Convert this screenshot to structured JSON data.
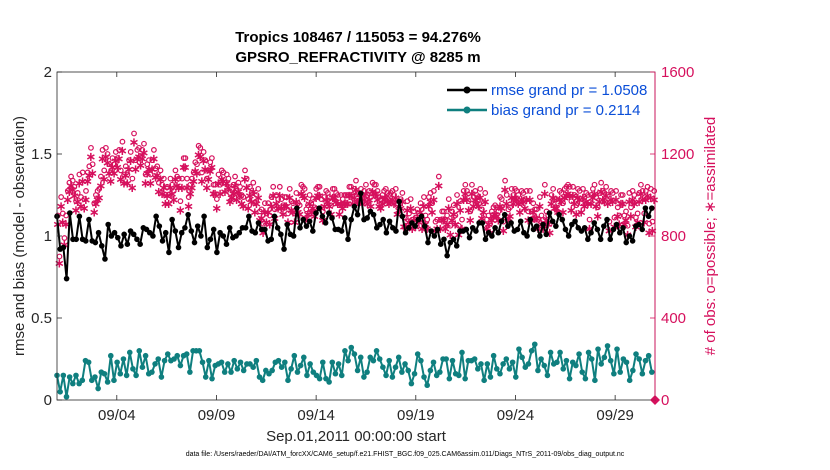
{
  "chart_data": {
    "type": "line",
    "title": "Tropics 108467 / 115053 = 94.276%",
    "subtitle": "GPSRO_REFRACTIVITY @ 8285 m",
    "xlabel": "Sep.01,2011 00:00:00 start",
    "ylabel": "rmse and bias (model - observation)",
    "y2label": "# of obs: o=possible; ∗=assimilated",
    "footer": "data file: /Users/raeder/DAI/ATM_forcXX/CAM6_setup/f.e21.FHIST_BGC.f09_025.CAM6assim.011/Diags_NTrS_2011-09/obs_diag_output.nc",
    "xlim": [
      1,
      31
    ],
    "ylim": [
      0,
      2
    ],
    "y2lim": [
      0,
      1600
    ],
    "x_tick_values": [
      4,
      9,
      14,
      19,
      24,
      29
    ],
    "x_tick_labels": [
      "09/04",
      "09/09",
      "09/14",
      "09/19",
      "09/24",
      "09/29"
    ],
    "y_tick_labels": [
      "0",
      "0.5",
      "1",
      "1.5",
      "2"
    ],
    "y2_tick_labels": [
      "0",
      "400",
      "800",
      "1200",
      "1600"
    ],
    "legend_position": "top-right",
    "colors": {
      "rmse": "#000000",
      "bias": "#0f7f7f",
      "obs": "#d6105d",
      "legend_text": "#0a4ed8"
    },
    "series": [
      {
        "name": "rmse grand pr = 1.0508",
        "values": [
          1.12,
          0.92,
          0.93,
          0.74,
          1.14,
          0.98,
          0.98,
          1.12,
          0.98,
          0.97,
          1.1,
          0.97,
          0.96,
          1.02,
          0.94,
          0.86,
          1.07,
          1.0,
          1.02,
          0.99,
          0.94,
          1.01,
          0.95,
          1.03,
          1.01,
          0.98,
          0.95,
          1.05,
          1.04,
          1.02,
          1.0,
          1.12,
          1.06,
          0.97,
          1.02,
          0.9,
          1.1,
          1.03,
          0.93,
          1.02,
          1.05,
          1.13,
          1.03,
          0.96,
          1.06,
          1.0,
          1.12,
          0.93,
          0.98,
          1.04,
          0.9,
          1.02,
          1.0,
          0.95,
          1.05,
          0.99,
          1.0,
          1.02,
          1.05,
          1.05,
          1.12,
          1.03,
          1.02,
          1.08,
          1.04,
          1.04,
          0.97,
          0.98,
          1.12,
          1.05,
          1.01,
          0.92,
          1.07,
          1.01,
          1.0,
          1.17,
          1.05,
          1.1,
          1.06,
          1.09,
          1.03,
          1.14,
          1.17,
          1.12,
          1.08,
          1.14,
          1.11,
          1.04,
          1.04,
          1.03,
          1.11,
          0.98,
          1.1,
          1.18,
          1.13,
          1.26,
          1.1,
          1.11,
          1.15,
          1.13,
          1.05,
          1.07,
          1.1,
          1.02,
          1.09,
          1.05,
          1.03,
          1.21,
          1.12,
          1.02,
          1.05,
          1.08,
          1.06,
          1.1,
          1.12,
          1.06,
          0.96,
          1.03,
          1.0,
          1.04,
          0.95,
          0.98,
          0.88,
          0.96,
          0.98,
          0.94,
          1.03,
          1.03,
          1.04,
          0.99,
          1.05,
          1.03,
          1.08,
          1.08,
          0.98,
          1.02,
          1.0,
          1.05,
          1.02,
          1.09,
          1.13,
          1.06,
          1.08,
          1.03,
          1.04,
          1.09,
          1.02,
          1.0,
          1.1,
          1.04,
          1.06,
          1.0,
          1.07,
          1.01,
          1.14,
          1.09,
          1.06,
          1.13,
          1.1,
          1.04,
          1.0,
          1.07,
          1.09,
          1.05,
          1.03,
          1.05,
          0.98,
          1.02,
          1.08,
          1.04,
          0.98,
          1.06,
          1.1,
          0.98,
          1.04,
          1.07,
          1.02,
          1.05,
          0.96,
          1.0,
          0.97,
          1.06,
          1.07,
          1.04,
          1.17,
          1.12,
          1.17
        ]
      },
      {
        "name": "bias grand pr = 0.2114",
        "values": [
          0.15,
          0.05,
          0.15,
          0.02,
          0.14,
          0.1,
          0.15,
          0.1,
          0.12,
          0.24,
          0.23,
          0.12,
          0.14,
          0.07,
          0.17,
          0.16,
          0.11,
          0.27,
          0.12,
          0.23,
          0.16,
          0.25,
          0.15,
          0.29,
          0.19,
          0.15,
          0.3,
          0.2,
          0.27,
          0.16,
          0.17,
          0.22,
          0.25,
          0.14,
          0.24,
          0.28,
          0.24,
          0.25,
          0.27,
          0.21,
          0.27,
          0.28,
          0.17,
          0.3,
          0.3,
          0.3,
          0.23,
          0.14,
          0.24,
          0.13,
          0.21,
          0.22,
          0.23,
          0.17,
          0.22,
          0.17,
          0.24,
          0.19,
          0.23,
          0.18,
          0.22,
          0.22,
          0.2,
          0.24,
          0.14,
          0.12,
          0.18,
          0.16,
          0.18,
          0.23,
          0.24,
          0.2,
          0.23,
          0.12,
          0.19,
          0.27,
          0.17,
          0.21,
          0.26,
          0.15,
          0.22,
          0.17,
          0.15,
          0.13,
          0.23,
          0.13,
          0.11,
          0.23,
          0.16,
          0.22,
          0.15,
          0.3,
          0.24,
          0.32,
          0.28,
          0.18,
          0.26,
          0.14,
          0.17,
          0.26,
          0.24,
          0.3,
          0.25,
          0.2,
          0.15,
          0.24,
          0.14,
          0.2,
          0.26,
          0.17,
          0.22,
          0.18,
          0.1,
          0.16,
          0.28,
          0.24,
          0.14,
          0.09,
          0.18,
          0.23,
          0.15,
          0.17,
          0.25,
          0.25,
          0.13,
          0.24,
          0.16,
          0.15,
          0.29,
          0.13,
          0.24,
          0.24,
          0.25,
          0.19,
          0.22,
          0.12,
          0.22,
          0.14,
          0.27,
          0.19,
          0.16,
          0.22,
          0.25,
          0.19,
          0.23,
          0.14,
          0.31,
          0.26,
          0.2,
          0.22,
          0.3,
          0.34,
          0.18,
          0.25,
          0.21,
          0.15,
          0.29,
          0.22,
          0.23,
          0.29,
          0.19,
          0.24,
          0.13,
          0.23,
          0.21,
          0.28,
          0.17,
          0.13,
          0.29,
          0.25,
          0.12,
          0.31,
          0.22,
          0.26,
          0.33,
          0.24,
          0.16,
          0.31,
          0.17,
          0.25,
          0.23,
          0.12,
          0.18,
          0.28,
          0.25,
          0.16,
          0.24,
          0.27,
          0.17
        ]
      },
      {
        "name": "obs possible",
        "axis": "right",
        "values": [
          900,
          700,
          990,
          910,
          790,
          900,
          1020,
          1060,
          1090,
          1070,
          1040,
          970,
          1010,
          1100,
          990,
          1110,
          980,
          1020,
          1110,
          1140,
          1230,
          1150,
          960,
          1000,
          1020,
          1030,
          1090,
          1220,
          1120,
          1230,
          1200,
          1150,
          1110,
          1180,
          1150,
          1210,
          1180,
          1220,
          1120,
          1260,
          1100,
          1140,
          1100,
          1170,
          1210,
          1080,
          1300,
          1170,
          1220,
          1230,
          1190,
          1220,
          1250,
          1100,
          1150,
          1170,
          1100,
          1170,
          1220,
          1130,
          1140,
          1060,
          1120,
          1050,
          1080,
          1000,
          1040,
          1000,
          1080,
          1050,
          1020,
          1120,
          1090,
          1080,
          970,
          1080,
          1180,
          1180,
          1080,
          990,
          1050,
          1080,
          1110,
          1160,
          1150,
          1240,
          1230,
          1110,
          1210,
          1170,
          1080,
          1120,
          1160,
          1180,
          1050,
          1050,
          980,
          1100,
          1050,
          1120,
          1110,
          1060,
          1100,
          1080,
          1010,
          1030,
          1050,
          1090,
          1020,
          1060,
          1040,
          1000,
          990,
          1120,
          1080,
          980,
          1040,
          1010,
          1060,
          960,
          1000,
          1030,
          920,
          930,
          860,
          960,
          910,
          960,
          900,
          990,
          1040,
          930,
          1000,
          980,
          1040,
          980,
          950,
          990,
          990,
          910,
          1030,
          970,
          960,
          910,
          1010,
          960,
          950,
          1050,
          1040,
          1030,
          930,
          950,
          1000,
          960,
          980,
          940,
          1030,
          1040,
          1040,
          980,
          920,
          990,
          1020,
          1010,
          990,
          950,
          1030,
          1030,
          1010,
          1000,
          950,
          1000,
          980,
          1000,
          1000,
          1000,
          1040,
          1040,
          1000,
          1030,
          1070,
          1010,
          1010,
          1030,
          1000,
          1020,
          1050,
          1000,
          1020,
          990,
          1060,
          1050,
          1050,
          1020,
          990,
          980,
          1000,
          1020,
          1030,
          1010,
          1000,
          1010,
          1020,
          1000,
          1030,
          950,
          970,
          980,
          1010,
          890,
          890,
          970,
          910,
          980,
          880,
          920,
          890,
          930,
          910,
          960,
          880,
          990,
          900,
          880,
          990,
          1010,
          960,
          1020,
          870,
          880,
          1090,
          880,
          920,
          920,
          880,
          900,
          980,
          850,
          920,
          950,
          900,
          1000,
          850,
          970,
          880,
          1020,
          1050,
          1020,
          970,
          920,
          1050,
          990,
          1020,
          1000,
          990,
          1030,
          930,
          960,
          1010,
          880,
          900,
          860,
          920,
          940,
          950,
          940,
          920,
          990,
          980,
          870,
          1070,
          1000,
          930,
          940,
          1030,
          1000,
          1030,
          1020,
          1000,
          960,
          1020,
          1010,
          980,
          1020,
          920,
          1020,
          920,
          960,
          930,
          930,
          880,
          990,
          900,
          880,
          1050,
          920,
          900,
          860,
          1000,
          1030,
          980,
          980,
          960,
          1020,
          1010,
          960,
          1030,
          1040,
          1050,
          1040,
          970,
          1040,
          1000,
          950,
          1030,
          1020,
          960,
          1030,
          990,
          1010,
          1000,
          880,
          1000,
          1030,
          1050,
          990,
          940,
          1010,
          1060,
          1020,
          1010,
          1040,
          1000,
          870,
          1020,
          1010,
          890,
          1020,
          940,
          900,
          1000,
          1000,
          900,
          920,
          850,
          1010,
          940,
          1020,
          1000,
          890,
          910,
          1010,
          1050,
          1020,
          910,
          1020,
          1040,
          860,
          1030,
          870,
          1020
        ]
      },
      {
        "name": "obs assimilated",
        "axis": "right",
        "values": [
          860,
          670,
          950,
          870,
          760,
          860,
          980,
          1020,
          1050,
          1030,
          1000,
          930,
          970,
          1060,
          950,
          1070,
          940,
          980,
          1070,
          1100,
          1190,
          1110,
          920,
          960,
          980,
          990,
          1050,
          1180,
          1080,
          1190,
          1160,
          1110,
          1070,
          1140,
          1110,
          1170,
          1140,
          1180,
          1080,
          1220,
          1060,
          1100,
          1060,
          1130,
          1170,
          1040,
          1260,
          1130,
          1180,
          1190,
          1150,
          1180,
          1210,
          1060,
          1110,
          1130,
          1060,
          1130,
          1180,
          1090,
          1100,
          1020,
          1080,
          1010,
          1040,
          960,
          1000,
          960,
          1040,
          1010,
          980,
          1080,
          1050,
          1040,
          930,
          1040,
          1140,
          1140,
          1040,
          950,
          1010,
          1040,
          1070,
          1120,
          1110,
          1200,
          1190,
          1070,
          1170,
          1130,
          1040,
          1080,
          1120,
          1140,
          1010,
          1010,
          940,
          1060,
          1010,
          1080,
          1070,
          1020,
          1060,
          1040,
          970,
          990,
          1010,
          1050,
          980,
          1020,
          1000,
          960,
          950,
          1080,
          1040,
          940,
          1000,
          970,
          1020,
          920,
          960,
          990,
          880,
          890,
          820,
          920,
          870,
          920,
          860,
          950,
          1000,
          890,
          960,
          940,
          1000,
          940,
          910,
          950,
          950,
          870,
          990,
          930,
          920,
          870,
          970,
          920,
          910,
          1010,
          1000,
          990,
          890,
          910,
          960,
          920,
          940,
          900,
          990,
          1000,
          1000,
          940,
          880,
          950,
          980,
          970,
          950,
          910,
          990,
          990,
          970,
          960,
          910,
          960,
          940,
          960,
          960,
          960,
          1000,
          1000,
          960,
          990,
          1030,
          970,
          970,
          990,
          960,
          980,
          1010,
          960,
          980,
          950,
          1020,
          1010,
          1010,
          980,
          950,
          940,
          960,
          980,
          990,
          970,
          960,
          970,
          980,
          960,
          990,
          910,
          930,
          940,
          970,
          850,
          850,
          930,
          870,
          940,
          840,
          880,
          850,
          890,
          870,
          920,
          840,
          950,
          860,
          840,
          950,
          970,
          920,
          980,
          830,
          840,
          1050,
          840,
          880,
          880,
          840,
          860,
          940,
          810,
          880,
          910,
          860,
          960,
          810,
          930,
          840,
          980,
          1010,
          980,
          930,
          880,
          1010,
          950,
          980,
          960,
          950,
          990,
          890,
          920,
          970,
          840,
          860,
          820,
          880,
          900,
          910,
          900,
          880,
          950,
          940,
          830,
          1030,
          960,
          890,
          900,
          990,
          960,
          990,
          980,
          960,
          920,
          980,
          970,
          940,
          980,
          880,
          980,
          880,
          920,
          890,
          890,
          840,
          950,
          860,
          840,
          1010,
          880,
          860,
          820,
          960,
          990,
          940,
          940,
          920,
          980,
          970,
          920,
          990,
          1000,
          1010,
          1000,
          930,
          1000,
          960,
          910,
          990,
          980,
          920,
          990,
          950,
          970,
          960,
          840,
          960,
          990,
          1010,
          950,
          900,
          970,
          1020,
          980,
          970,
          1000,
          960,
          830,
          980,
          970,
          850,
          980,
          900,
          860,
          960,
          960,
          860,
          880,
          810,
          970,
          900,
          980,
          960,
          850,
          870,
          970,
          1010,
          980,
          870,
          980,
          1000,
          820,
          990,
          830,
          980
        ]
      }
    ]
  }
}
